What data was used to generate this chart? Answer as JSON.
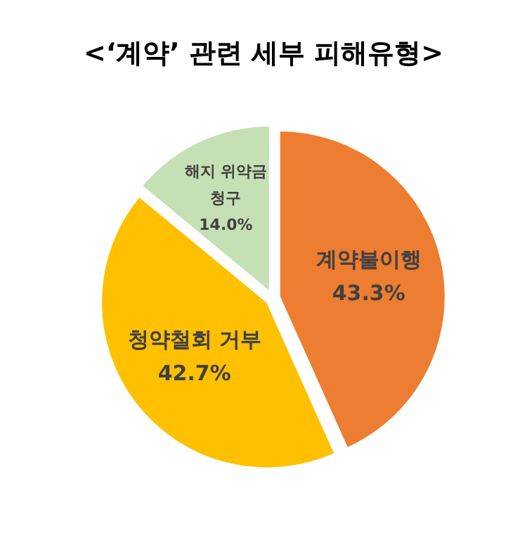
{
  "chart_data": {
    "type": "pie",
    "title": "<‘계약’ 관련 세부 피해유형>",
    "categories": [
      "계약불이행",
      "청약철회 거부",
      "해지 위약금 청구"
    ],
    "values": [
      43.3,
      42.7,
      14.0
    ],
    "colors": [
      "#ed7d31",
      "#ffc000",
      "#c5e0b4"
    ],
    "value_labels": [
      "43.3%",
      "42.7%",
      "14.0%"
    ],
    "legend": false
  }
}
